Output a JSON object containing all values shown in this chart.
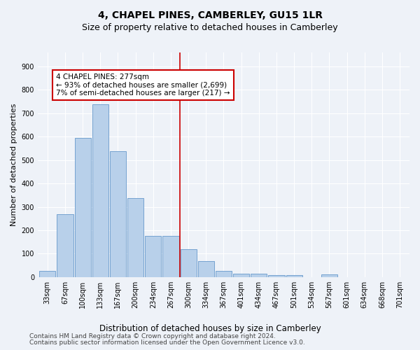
{
  "title": "4, CHAPEL PINES, CAMBERLEY, GU15 1LR",
  "subtitle": "Size of property relative to detached houses in Camberley",
  "xlabel": "Distribution of detached houses by size in Camberley",
  "ylabel": "Number of detached properties",
  "footnote1": "Contains HM Land Registry data © Crown copyright and database right 2024.",
  "footnote2": "Contains public sector information licensed under the Open Government Licence v3.0.",
  "bar_labels": [
    "33sqm",
    "67sqm",
    "100sqm",
    "133sqm",
    "167sqm",
    "200sqm",
    "234sqm",
    "267sqm",
    "300sqm",
    "334sqm",
    "367sqm",
    "401sqm",
    "434sqm",
    "467sqm",
    "501sqm",
    "534sqm",
    "567sqm",
    "601sqm",
    "634sqm",
    "668sqm",
    "701sqm"
  ],
  "bar_values": [
    27,
    270,
    594,
    740,
    537,
    336,
    175,
    175,
    120,
    67,
    25,
    13,
    13,
    8,
    8,
    0,
    10,
    0,
    0,
    0,
    0
  ],
  "bar_color": "#b8d0ea",
  "bar_edge_color": "#6699cc",
  "vline_x": 7.5,
  "vline_color": "#cc0000",
  "annotation_text": "4 CHAPEL PINES: 277sqm\n← 93% of detached houses are smaller (2,699)\n7% of semi-detached houses are larger (217) →",
  "annotation_box_color": "#cc0000",
  "ylim": [
    0,
    960
  ],
  "yticks": [
    0,
    100,
    200,
    300,
    400,
    500,
    600,
    700,
    800,
    900
  ],
  "bg_color": "#eef2f8",
  "grid_color": "#ffffff",
  "title_fontsize": 10,
  "subtitle_fontsize": 9,
  "annotation_fontsize": 7.5,
  "axis_fontsize": 7,
  "xlabel_fontsize": 8.5,
  "ylabel_fontsize": 8,
  "footnote_fontsize": 6.5
}
